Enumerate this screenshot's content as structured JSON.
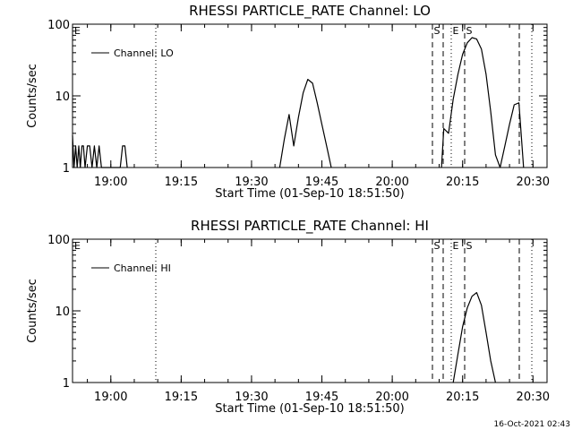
{
  "footer_timestamp": "16-Oct-2021 02:43",
  "chart_data": [
    {
      "type": "line",
      "title": "RHESSI PARTICLE_RATE Channel: LO",
      "xlabel": "Start Time (01-Sep-10 18:51:50)",
      "ylabel": "Counts/sec",
      "y_scale": "log",
      "ylim": [
        1,
        100
      ],
      "y_ticks": [
        "1",
        "10",
        "100"
      ],
      "xlim": [
        "18:51:50",
        "20:33:00"
      ],
      "x_ticks": [
        "19:00",
        "19:15",
        "19:30",
        "19:45",
        "20:00",
        "20:15",
        "20:30"
      ],
      "legend": {
        "placement": "top-left",
        "entries": [
          "Channel: LO"
        ]
      },
      "corner_marker": "E",
      "markers": [
        "S",
        "E",
        "S"
      ],
      "series": [
        {
          "name": "Channel: LO",
          "x": [
            "18:51:50",
            "18:52:10",
            "18:52:30",
            "18:52:50",
            "18:53:10",
            "18:53:30",
            "18:53:50",
            "18:54:10",
            "18:54:30",
            "18:55:00",
            "18:55:30",
            "18:56:00",
            "18:56:30",
            "18:57:00",
            "18:57:30",
            "18:58:00",
            "18:59:00",
            "19:02:00",
            "19:02:30",
            "19:03:00",
            "19:03:30",
            "19:36:00",
            "19:37:00",
            "19:38:00",
            "19:39:00",
            "19:40:00",
            "19:41:00",
            "19:42:00",
            "19:43:00",
            "19:44:00",
            "19:45:00",
            "19:46:00",
            "19:47:00",
            "20:10:30",
            "20:11:00",
            "20:12:00",
            "20:13:00",
            "20:14:00",
            "20:15:00",
            "20:16:00",
            "20:17:00",
            "20:18:00",
            "20:19:00",
            "20:20:00",
            "20:21:00",
            "20:22:00",
            "20:23:00",
            "20:24:00",
            "20:25:00",
            "20:26:00",
            "20:27:00",
            "20:28:00"
          ],
          "y": [
            2.8,
            1.0,
            2.0,
            1.0,
            2.0,
            1.0,
            2.0,
            2.0,
            1.0,
            2.0,
            2.0,
            1.0,
            2.0,
            1.0,
            2.0,
            1.0,
            1.0,
            1.0,
            2.0,
            2.0,
            1.0,
            1.0,
            2.5,
            5.5,
            2.0,
            5.0,
            11.0,
            17.0,
            15.0,
            8.0,
            4.0,
            2.0,
            1.0,
            1.0,
            3.5,
            3.0,
            9.0,
            20.0,
            38.0,
            55.0,
            65.0,
            62.0,
            45.0,
            20.0,
            6.0,
            1.5,
            1.0,
            2.0,
            4.0,
            7.5,
            8.0,
            1.0
          ]
        }
      ]
    },
    {
      "type": "line",
      "title": "RHESSI PARTICLE_RATE Channel: HI",
      "xlabel": "Start Time (01-Sep-10 18:51:50)",
      "ylabel": "Counts/sec",
      "y_scale": "log",
      "ylim": [
        1,
        100
      ],
      "y_ticks": [
        "1",
        "10",
        "100"
      ],
      "xlim": [
        "18:51:50",
        "20:33:00"
      ],
      "x_ticks": [
        "19:00",
        "19:15",
        "19:30",
        "19:45",
        "20:00",
        "20:15",
        "20:30"
      ],
      "legend": {
        "placement": "top-left",
        "entries": [
          "Channel: HI"
        ]
      },
      "corner_marker": "E",
      "markers": [
        "S",
        "E",
        "S"
      ],
      "series": [
        {
          "name": "Channel: HI",
          "x": [
            "20:13:00",
            "20:14:00",
            "20:15:00",
            "20:16:00",
            "20:17:00",
            "20:18:00",
            "20:19:00",
            "20:20:00",
            "20:21:00",
            "20:22:00"
          ],
          "y": [
            1.0,
            2.5,
            6.0,
            11.0,
            16.0,
            18.0,
            12.0,
            5.0,
            2.0,
            1.0
          ]
        }
      ]
    }
  ]
}
